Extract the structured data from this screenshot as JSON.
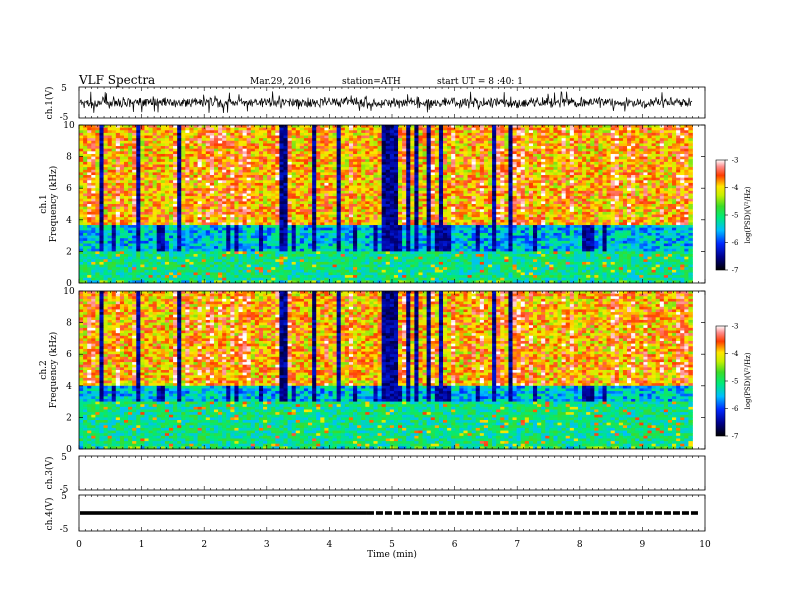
{
  "header": {
    "title": "VLF  Spectra",
    "date": "Mar.29, 2016",
    "station": "station=ATH",
    "start": "start  UT  =   8  :40: 1"
  },
  "chart_data": [
    {
      "type": "line",
      "ylabel": "ch.1(V)",
      "ylim": [
        -5,
        5
      ],
      "yticks": [
        "5",
        "-5"
      ],
      "trace_mean": 0,
      "trace_noise_amplitude": 1.4,
      "spike_amplitude": 3.6,
      "xlim": [
        0,
        10
      ],
      "data_end": 9.8
    },
    {
      "type": "heatmap",
      "ylabel": "ch.1",
      "ylabel2": "Frequency  (kHz)",
      "ylim": [
        0,
        10
      ],
      "yticks": [
        "0",
        "2",
        "4",
        "6",
        "8",
        "10"
      ],
      "colorbar": {
        "label": "log(PSD)(V²/Hz)",
        "range": [
          -7,
          -3
        ],
        "ticks": [
          "-3",
          "-4",
          "-5",
          "-6",
          "-7"
        ]
      },
      "bands_kHz": {
        "low_noise": [
          2.0,
          3.6
        ],
        "hiss": [
          0.2,
          2.0
        ]
      }
    },
    {
      "type": "heatmap",
      "ylabel": "ch.2",
      "ylabel2": "Frequency  (kHz)",
      "ylim": [
        0,
        10
      ],
      "yticks": [
        "0",
        "2",
        "4",
        "6",
        "8",
        "10"
      ],
      "colorbar": {
        "label": "log(PSD)(V²/Hz)",
        "range": [
          -7,
          -3
        ],
        "ticks": [
          "-3",
          "-4",
          "-5",
          "-6",
          "-7"
        ]
      },
      "bands_kHz": {
        "low_noise": [
          3.0,
          4.0
        ],
        "hiss": [
          0.2,
          2.8
        ]
      }
    },
    {
      "type": "line",
      "ylabel": "ch.3(V)",
      "ylim": [
        -5,
        5
      ],
      "yticks": [
        "5",
        "-5"
      ],
      "trace": "none"
    },
    {
      "type": "line",
      "ylabel": "ch.4(V)",
      "ylim": [
        -5,
        5
      ],
      "yticks": [
        "5",
        "-5"
      ],
      "trace_level": 0,
      "xlim": [
        0,
        10
      ],
      "data_end": 9.8
    }
  ],
  "xaxis": {
    "label": "Time  (min)",
    "ticks": [
      "0",
      "1",
      "2",
      "3",
      "4",
      "5",
      "6",
      "7",
      "8",
      "9",
      "10"
    ],
    "range": [
      0,
      10
    ]
  }
}
